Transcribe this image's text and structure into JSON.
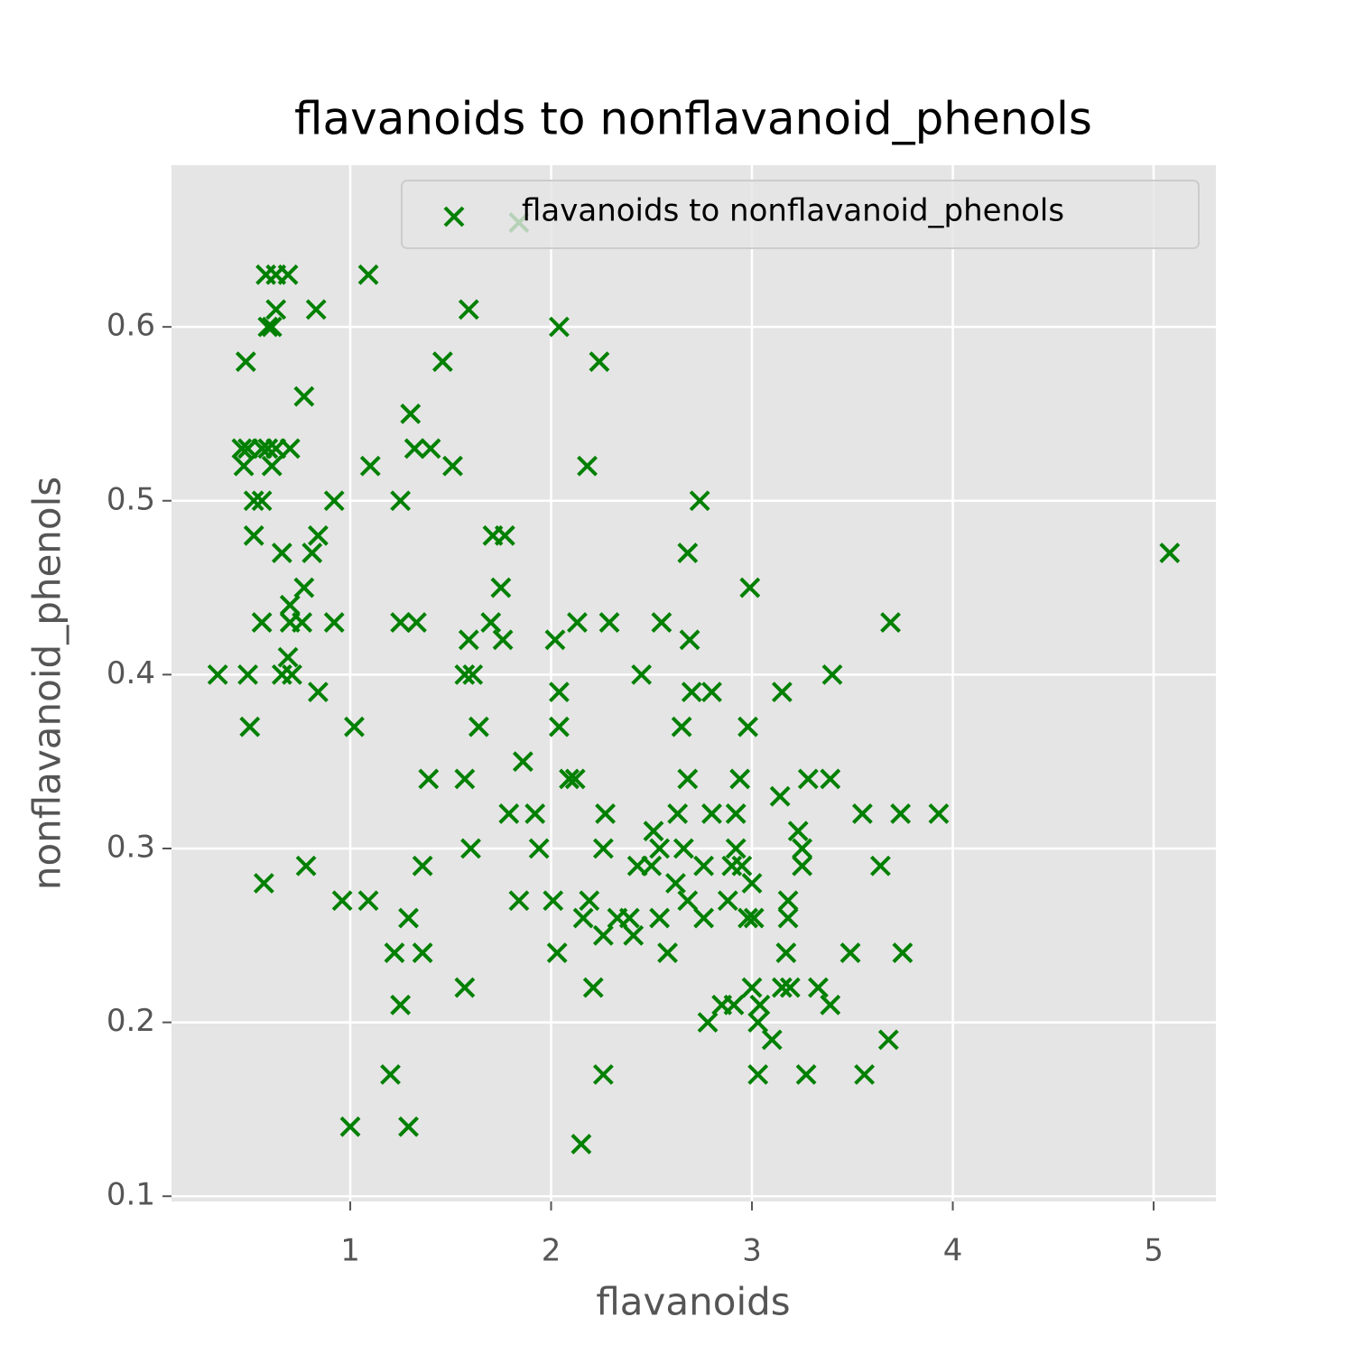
{
  "chart_data": {
    "type": "scatter",
    "title": "flavanoids to nonflavanoid_phenols",
    "x_label": "flavanoids",
    "y_label": "nonflavanoid_phenols",
    "x": [
      1.84,
      0.58,
      0.63,
      0.69,
      1.09,
      0.63,
      0.83,
      1.59,
      0.59,
      0.61,
      2.04,
      0.48,
      1.46,
      2.24,
      0.77,
      1.3,
      0.46,
      0.49,
      0.56,
      0.59,
      0.63,
      0.7,
      1.32,
      1.4,
      0.47,
      0.61,
      1.1,
      1.51,
      2.18,
      0.52,
      0.56,
      0.92,
      1.25,
      2.74,
      0.52,
      0.84,
      1.71,
      1.77,
      0.66,
      0.81,
      2.68,
      5.08,
      0.77,
      1.75,
      2.99,
      0.7,
      0.56,
      0.7,
      0.76,
      0.92,
      1.25,
      1.33,
      1.7,
      2.13,
      2.29,
      2.55,
      3.69,
      1.59,
      1.76,
      2.02,
      2.69,
      0.69,
      0.34,
      0.49,
      0.66,
      0.71,
      1.57,
      1.61,
      2.45,
      3.4,
      0.84,
      2.04,
      2.7,
      2.8,
      3.15,
      0.5,
      1.02,
      1.64,
      2.04,
      2.65,
      2.98,
      1.86,
      1.39,
      1.57,
      2.09,
      2.12,
      2.68,
      2.94,
      3.28,
      3.39,
      3.14,
      1.79,
      1.92,
      2.27,
      2.63,
      2.8,
      2.92,
      3.55,
      3.74,
      3.93,
      2.51,
      3.23,
      1.6,
      1.94,
      2.26,
      2.54,
      2.66,
      2.92,
      3.25,
      0.78,
      1.36,
      2.43,
      2.5,
      2.76,
      2.9,
      2.95,
      3.25,
      3.64,
      0.57,
      2.62,
      3.0,
      0.96,
      1.09,
      1.84,
      2.01,
      2.19,
      2.68,
      2.88,
      3.18,
      1.29,
      2.16,
      2.33,
      2.39,
      2.54,
      2.76,
      2.98,
      3.01,
      3.18,
      2.26,
      2.41,
      1.22,
      1.36,
      2.03,
      2.58,
      3.17,
      3.49,
      3.75,
      1.57,
      2.21,
      3.0,
      3.15,
      3.19,
      3.33,
      1.25,
      2.85,
      2.91,
      3.04,
      3.39,
      2.78,
      3.03,
      3.1,
      3.68,
      1.2,
      2.26,
      3.03,
      3.27,
      3.56,
      1.0,
      1.29,
      2.15
    ],
    "series": [
      {
        "name": "flavanoids to nonflavanoid_phenols",
        "color": "green",
        "marker": "x",
        "values": [
          0.66,
          0.63,
          0.63,
          0.63,
          0.63,
          0.61,
          0.61,
          0.61,
          0.6,
          0.6,
          0.6,
          0.58,
          0.58,
          0.58,
          0.56,
          0.55,
          0.53,
          0.53,
          0.53,
          0.53,
          0.53,
          0.53,
          0.53,
          0.53,
          0.52,
          0.52,
          0.52,
          0.52,
          0.52,
          0.5,
          0.5,
          0.5,
          0.5,
          0.5,
          0.48,
          0.48,
          0.48,
          0.48,
          0.47,
          0.47,
          0.47,
          0.47,
          0.45,
          0.45,
          0.45,
          0.44,
          0.43,
          0.43,
          0.43,
          0.43,
          0.43,
          0.43,
          0.43,
          0.43,
          0.43,
          0.43,
          0.43,
          0.42,
          0.42,
          0.42,
          0.42,
          0.41,
          0.4,
          0.4,
          0.4,
          0.4,
          0.4,
          0.4,
          0.4,
          0.4,
          0.39,
          0.39,
          0.39,
          0.39,
          0.39,
          0.37,
          0.37,
          0.37,
          0.37,
          0.37,
          0.37,
          0.35,
          0.34,
          0.34,
          0.34,
          0.34,
          0.34,
          0.34,
          0.34,
          0.34,
          0.33,
          0.32,
          0.32,
          0.32,
          0.32,
          0.32,
          0.32,
          0.32,
          0.32,
          0.32,
          0.31,
          0.31,
          0.3,
          0.3,
          0.3,
          0.3,
          0.3,
          0.3,
          0.3,
          0.29,
          0.29,
          0.29,
          0.29,
          0.29,
          0.29,
          0.29,
          0.29,
          0.29,
          0.28,
          0.28,
          0.28,
          0.27,
          0.27,
          0.27,
          0.27,
          0.27,
          0.27,
          0.27,
          0.27,
          0.26,
          0.26,
          0.26,
          0.26,
          0.26,
          0.26,
          0.26,
          0.26,
          0.26,
          0.25,
          0.25,
          0.24,
          0.24,
          0.24,
          0.24,
          0.24,
          0.24,
          0.24,
          0.22,
          0.22,
          0.22,
          0.22,
          0.22,
          0.22,
          0.21,
          0.21,
          0.21,
          0.21,
          0.21,
          0.2,
          0.2,
          0.19,
          0.19,
          0.17,
          0.17,
          0.17,
          0.17,
          0.17,
          0.14,
          0.14,
          0.13
        ]
      }
    ],
    "xlim": [
      0.11,
      5.31
    ],
    "ylim": [
      0.097,
      0.693
    ],
    "xticks": [
      1,
      2,
      3,
      4,
      5
    ],
    "yticks": [
      0.1,
      0.2,
      0.3,
      0.4,
      0.5,
      0.6
    ],
    "grid": true,
    "legend": "upper right"
  }
}
